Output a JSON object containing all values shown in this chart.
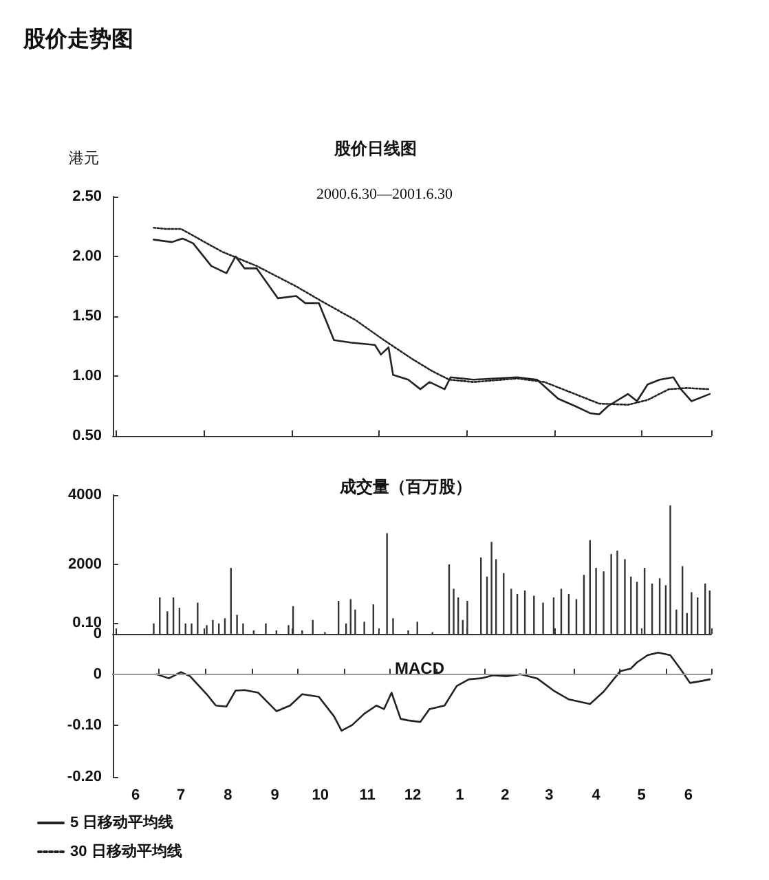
{
  "chart_data": [
    {
      "type": "line",
      "title": "股价走势图",
      "subtitle": "股价日线图",
      "ylabel": "港元",
      "annotations": [
        "2000.6.30—2001.6.30"
      ],
      "xlim": [
        "2000-06-01",
        "2001-07-01"
      ],
      "ylim": [
        0.5,
        2.5
      ],
      "yticks": [
        {
          "value": 0.5,
          "label": "0.50"
        },
        {
          "value": 1,
          "label": "1.00"
        },
        {
          "value": 1.5,
          "label": "1.50"
        },
        {
          "value": 2,
          "label": "2.00"
        },
        {
          "value": 2.5,
          "label": "2.50"
        }
      ],
      "tick_labels": "y",
      "legend": "bottom left",
      "marker": "none",
      "series": [
        {
          "name": "5 日移动平均线",
          "color": "#222222",
          "line_style": "solid",
          "x": [
            "2000-06-28",
            "2000-07-10",
            "2000-07-17",
            "2000-07-24",
            "2000-08-05",
            "2000-08-15",
            "2000-08-21",
            "2000-08-27",
            "2000-09-04",
            "2000-09-18",
            "2000-09-30",
            "2000-10-06",
            "2000-10-15",
            "2000-10-25",
            "2000-11-05",
            "2000-11-21",
            "2000-11-25",
            "2000-11-30",
            "2000-12-03",
            "2000-12-13",
            "2000-12-21",
            "2000-12-27",
            "2001-01-06",
            "2001-01-10",
            "2001-01-25",
            "2001-02-23",
            "2001-03-08",
            "2001-03-22",
            "2001-04-02",
            "2001-04-12",
            "2001-04-18",
            "2001-04-24",
            "2001-05-07",
            "2001-05-13",
            "2001-05-20",
            "2001-05-28",
            "2001-06-06",
            "2001-06-11",
            "2001-06-18",
            "2001-06-30"
          ],
          "values": [
            2.14,
            2.12,
            2.15,
            2.11,
            1.92,
            1.86,
            2.0,
            1.9,
            1.9,
            1.65,
            1.67,
            1.61,
            1.61,
            1.3,
            1.28,
            1.26,
            1.18,
            1.24,
            1.01,
            0.97,
            0.89,
            0.95,
            0.89,
            0.99,
            0.97,
            0.99,
            0.97,
            0.81,
            0.75,
            0.69,
            0.68,
            0.75,
            0.85,
            0.79,
            0.93,
            0.97,
            0.99,
            0.89,
            0.79,
            0.85
          ]
        },
        {
          "name": "30 日移动平均线",
          "color": "#222222",
          "line_style": "dotted",
          "x": [
            "2000-06-28",
            "2000-07-06",
            "2000-07-16",
            "2000-07-26",
            "2000-08-12",
            "2000-09-04",
            "2000-09-30",
            "2000-10-19",
            "2000-11-08",
            "2000-11-27",
            "2000-12-16",
            "2000-12-29",
            "2001-01-09",
            "2001-01-25",
            "2001-02-23",
            "2001-03-13",
            "2001-03-29",
            "2001-04-18",
            "2001-05-07",
            "2001-05-20",
            "2001-06-03",
            "2001-06-15",
            "2001-06-30"
          ],
          "values": [
            2.24,
            2.23,
            2.23,
            2.16,
            2.04,
            1.92,
            1.75,
            1.61,
            1.47,
            1.3,
            1.14,
            1.04,
            0.97,
            0.95,
            0.98,
            0.95,
            0.87,
            0.77,
            0.76,
            0.8,
            0.89,
            0.9,
            0.89
          ]
        }
      ]
    },
    {
      "type": "bar",
      "title": "成交量（百万股）",
      "xlim": [
        "2000-06-01",
        "2001-07-01"
      ],
      "ylim": [
        0,
        4000
      ],
      "yticks": [
        0,
        2000,
        4000
      ],
      "tick_labels": "y",
      "color": "#333333",
      "x": [
        "2000-06-28",
        "2000-07-02",
        "2000-07-07",
        "2000-07-11",
        "2000-07-15",
        "2000-07-19",
        "2000-07-23",
        "2000-07-27",
        "2000-08-02",
        "2000-08-06",
        "2000-08-10",
        "2000-08-14",
        "2000-08-18",
        "2000-08-22",
        "2000-08-26",
        "2000-09-02",
        "2000-09-10",
        "2000-09-17",
        "2000-09-25",
        "2000-09-28",
        "2000-10-04",
        "2000-10-11",
        "2000-10-19",
        "2000-10-28",
        "2000-11-02",
        "2000-11-05",
        "2000-11-08",
        "2000-11-14",
        "2000-11-20",
        "2000-11-29",
        "2000-12-03",
        "2000-12-13",
        "2000-12-19",
        "2000-12-29",
        "2001-01-09",
        "2001-01-12",
        "2001-01-15",
        "2001-01-18",
        "2001-01-21",
        "2001-01-30",
        "2001-02-03",
        "2001-02-06",
        "2001-02-09",
        "2001-02-14",
        "2001-02-19",
        "2001-02-23",
        "2001-02-28",
        "2001-03-06",
        "2001-03-12",
        "2001-03-19",
        "2001-03-24",
        "2001-03-29",
        "2001-04-03",
        "2001-04-08",
        "2001-04-12",
        "2001-04-16",
        "2001-04-21",
        "2001-04-26",
        "2001-04-30",
        "2001-05-05",
        "2001-05-09",
        "2001-05-13",
        "2001-05-18",
        "2001-05-23",
        "2001-05-28",
        "2001-06-01",
        "2001-06-04",
        "2001-06-08",
        "2001-06-12",
        "2001-06-15",
        "2001-06-18",
        "2001-06-22",
        "2001-06-27",
        "2001-06-30"
      ],
      "values": [
        300,
        1050,
        650,
        1050,
        750,
        300,
        300,
        900,
        250,
        400,
        300,
        450,
        1900,
        550,
        300,
        100,
        300,
        100,
        250,
        800,
        100,
        400,
        50,
        950,
        300,
        1000,
        700,
        350,
        850,
        2900,
        450,
        100,
        350,
        50,
        2000,
        1300,
        1050,
        400,
        950,
        2200,
        1650,
        2650,
        2150,
        1750,
        1300,
        1150,
        1250,
        1100,
        900,
        1050,
        1300,
        1150,
        1000,
        1700,
        2700,
        1900,
        1800,
        2300,
        2400,
        2150,
        1650,
        1500,
        1900,
        1450,
        1600,
        1400,
        3700,
        700,
        1950,
        600,
        1200,
        1050,
        1450,
        1250
      ]
    },
    {
      "type": "line",
      "title": "MACD",
      "xlim": [
        "2000-06-01",
        "2001-07-01"
      ],
      "xticks": [
        {
          "value": "2000-06-01",
          "label": null
        },
        {
          "value": "2000-06-16",
          "label": "6"
        },
        {
          "value": "2000-07-01",
          "label": null
        },
        {
          "value": "2000-07-16",
          "label": "7"
        },
        {
          "value": "2000-08-01",
          "label": null
        },
        {
          "value": "2000-08-16",
          "label": "8"
        },
        {
          "value": "2000-09-01",
          "label": null
        },
        {
          "value": "2000-09-16",
          "label": "9"
        },
        {
          "value": "2000-10-01",
          "label": null
        },
        {
          "value": "2000-10-16",
          "label": "10"
        },
        {
          "value": "2000-11-01",
          "label": null
        },
        {
          "value": "2000-11-16",
          "label": "11"
        },
        {
          "value": "2000-12-01",
          "label": null
        },
        {
          "value": "2000-12-16",
          "label": "12"
        },
        {
          "value": "2001-01-01",
          "label": null
        },
        {
          "value": "2001-01-16",
          "label": "1"
        },
        {
          "value": "2001-02-01",
          "label": null
        },
        {
          "value": "2001-02-15",
          "label": "2"
        },
        {
          "value": "2001-03-01",
          "label": null
        },
        {
          "value": "2001-03-16",
          "label": "3"
        },
        {
          "value": "2001-04-01",
          "label": null
        },
        {
          "value": "2001-04-16",
          "label": "4"
        },
        {
          "value": "2001-05-01",
          "label": null
        },
        {
          "value": "2001-05-16",
          "label": "5"
        },
        {
          "value": "2001-06-01",
          "label": null
        },
        {
          "value": "2001-06-16",
          "label": "6"
        },
        {
          "value": "2001-07-01",
          "label": null
        }
      ],
      "ylim": [
        -0.2,
        0.1
      ],
      "yticks": [
        {
          "value": -0.2,
          "label": "-0.20"
        },
        {
          "value": -0.1,
          "label": "-0.10"
        },
        0,
        {
          "value": 0.1,
          "label": "0.10"
        }
      ],
      "marker": "none",
      "color": "#222222",
      "ref_lines": [
        {
          "axis": "y",
          "value": 0,
          "color": "#999999"
        }
      ],
      "x": [
        "2000-06-30",
        "2000-07-08",
        "2000-07-16",
        "2000-07-22",
        "2000-08-02",
        "2000-08-08",
        "2000-08-15",
        "2000-08-21",
        "2000-08-27",
        "2000-09-05",
        "2000-09-17",
        "2000-09-26",
        "2000-10-04",
        "2000-10-15",
        "2000-10-25",
        "2000-10-30",
        "2000-11-06",
        "2000-11-14",
        "2000-11-22",
        "2000-11-27",
        "2000-12-02",
        "2000-12-08",
        "2000-12-13",
        "2000-12-21",
        "2000-12-27",
        "2001-01-06",
        "2001-01-14",
        "2001-01-22",
        "2001-01-30",
        "2001-02-07",
        "2001-02-16",
        "2001-02-25",
        "2001-03-08",
        "2001-03-19",
        "2001-03-29",
        "2001-04-12",
        "2001-04-21",
        "2001-05-02",
        "2001-05-09",
        "2001-05-13",
        "2001-05-20",
        "2001-05-27",
        "2001-06-04",
        "2001-06-11",
        "2001-06-17",
        "2001-06-25",
        "2001-06-30"
      ],
      "values": [
        0,
        -0.008,
        0.004,
        -0.004,
        -0.039,
        -0.061,
        -0.063,
        -0.032,
        -0.031,
        -0.036,
        -0.072,
        -0.061,
        -0.039,
        -0.044,
        -0.082,
        -0.11,
        -0.099,
        -0.077,
        -0.061,
        -0.068,
        -0.036,
        -0.087,
        -0.09,
        -0.093,
        -0.068,
        -0.061,
        -0.023,
        -0.01,
        -0.008,
        -0.002,
        -0.004,
        0,
        -0.008,
        -0.032,
        -0.049,
        -0.058,
        -0.034,
        0.006,
        0.011,
        0.023,
        0.037,
        0.042,
        0.037,
        0.009,
        -0.017,
        -0.013,
        -0.01
      ]
    }
  ]
}
